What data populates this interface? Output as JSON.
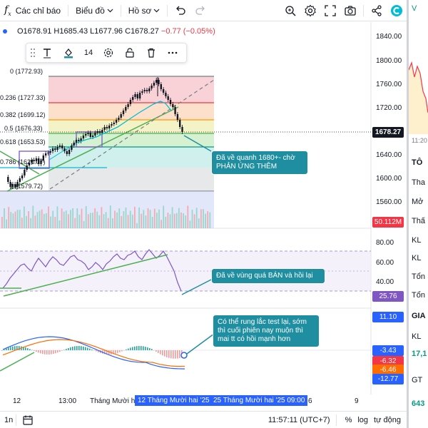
{
  "toolbar": {
    "indicators_label": "Các chỉ báo",
    "chart_type_label": "Biểu đồ",
    "profile_label": "Hồ sơ"
  },
  "legend": {
    "open": "O1678.91",
    "high": "H1685.43",
    "low": "L1677.96",
    "close": "C1678.27",
    "change": "−0.77 (−0.05%)"
  },
  "drawing_toolbar": {
    "line_width": "14"
  },
  "fib_levels": [
    {
      "label": "0 (1772.93)"
    },
    {
      "label": "0.236 (1727.33)"
    },
    {
      "label": "0.382 (1699.12)"
    },
    {
      "label": "0.5 (1676.33)"
    },
    {
      "label": "0.618 (1653.53)"
    },
    {
      "label": "0.786 (1621.07)"
    },
    {
      "label": "1 (1579.72)"
    }
  ],
  "price_axis": {
    "ticks": [
      "1840.00",
      "1800.00",
      "1760.00",
      "1720.00",
      "1680.00",
      "1640.00",
      "1600.00",
      "1560.00"
    ],
    "current_price": "1678.27",
    "volume": "50.112M"
  },
  "rsi_axis": {
    "ticks": [
      "80.00",
      "60.00",
      "40.00"
    ],
    "value": "25.76"
  },
  "macd_axis": {
    "values": [
      "11.10",
      "-3.43",
      "-6.32",
      "-6.46",
      "-12.77"
    ]
  },
  "callouts": {
    "price": "Đã về quanh 1680+- chờ PHẢN ỨNG THÊM",
    "rsi": "Đã về vùng quá BÁN và hồi lại",
    "macd": "Có thể rung lắc test lại, sớm thì cuối phiên nay muộn thì mai tt có hồi mạnh hơn"
  },
  "time_axis": {
    "labels": [
      "12",
      "13:00",
      "Tháng Mười hai",
      "6",
      "9"
    ],
    "highlight_1": "12 Tháng Mười hai '25",
    "highlight_2": "25 Tháng Mười hai '25   09:00"
  },
  "bottom_bar": {
    "interval": "1n",
    "clock": "11:57:11 (UTC+7)",
    "percent": "%",
    "log": "log",
    "auto": "tự động"
  },
  "right_panel": {
    "rows": [
      "V",
      "11:20",
      "TÔ",
      "Tha",
      "Mở",
      "Thấ",
      "KL",
      "KL",
      "Tổn",
      "Tổn",
      "GIA",
      "KL",
      "17,1",
      "GT",
      "643"
    ]
  },
  "colors": {
    "up": "#089981",
    "down": "#f23645",
    "accent": "#2962ff",
    "callout": "#1e8ea0",
    "rsi_line": "#7e57c2",
    "macd_line": "#2962ff",
    "signal_line": "#ff6d00"
  }
}
